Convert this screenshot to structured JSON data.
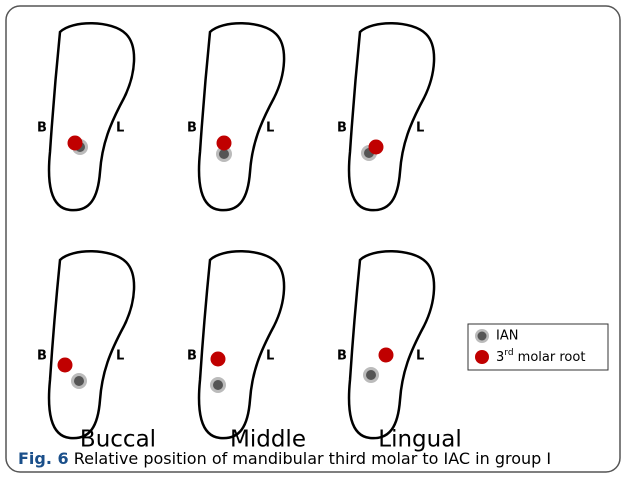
{
  "panels": {
    "buccal_side": "B",
    "lingual_side": "L"
  },
  "columns": [
    "Buccal",
    "Middle",
    "Lingual"
  ],
  "legend": {
    "ian": "IAN",
    "root_prefix": "3",
    "root_sup": "rd",
    "root_rest": " molar root"
  },
  "caption": {
    "label": "Fig. 6",
    "text": " Relative position of mandibular third molar to IAC in group I"
  }
}
